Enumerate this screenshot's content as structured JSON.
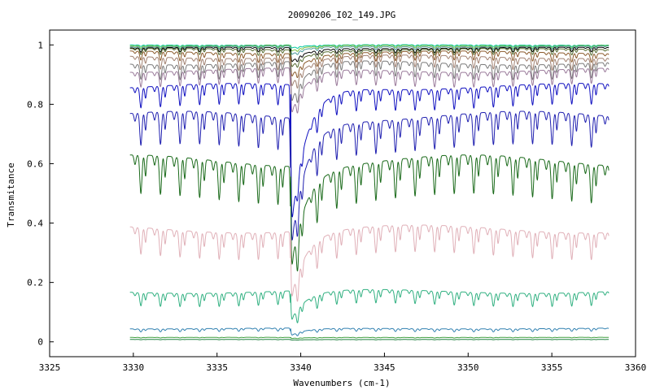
{
  "chart_data": {
    "type": "line",
    "title": "20090206_I02_149.JPG",
    "xlabel": "Wavenumbers (cm-1)",
    "ylabel": "Transmitance",
    "xlim": [
      3325,
      3360
    ],
    "ylim": [
      -0.05,
      1.05
    ],
    "xticks": [
      3325,
      3330,
      3335,
      3340,
      3345,
      3350,
      3355,
      3360
    ],
    "xtick_labels": [
      "3325",
      "3330",
      "3335",
      "3340",
      "3345",
      "3350",
      "3355",
      "3360"
    ],
    "yticks": [
      0,
      0.2,
      0.4,
      0.6,
      0.8,
      1
    ],
    "ytick_labels": [
      "0",
      "0.2",
      "0.4",
      "0.6",
      "0.8",
      "1"
    ],
    "x_range": [
      3329.8,
      3358.4
    ],
    "grid": false,
    "legend": "none",
    "absorption_line_spacing_cm1": 1.17,
    "strong_dip_at": 3339.4,
    "series": [
      {
        "color": "#00c8a0",
        "baseline": 1.0,
        "depth": 0.005,
        "strong": 0.01
      },
      {
        "color": "#7fbf3f",
        "baseline": 0.998,
        "depth": 0.008,
        "strong": 0.02
      },
      {
        "color": "#4a9a9a",
        "baseline": 0.995,
        "depth": 0.01,
        "strong": 0.03
      },
      {
        "color": "#000000",
        "baseline": 0.99,
        "depth": 0.015,
        "strong": 0.05
      },
      {
        "color": "#556b2f",
        "baseline": 0.985,
        "depth": 0.02,
        "strong": 0.06
      },
      {
        "color": "#8b5a2b",
        "baseline": 0.975,
        "depth": 0.03,
        "strong": 0.08
      },
      {
        "color": "#a08070",
        "baseline": 0.96,
        "depth": 0.04,
        "strong": 0.1
      },
      {
        "color": "#7a7a7a",
        "baseline": 0.94,
        "depth": 0.05,
        "strong": 0.14
      },
      {
        "color": "#9a7a9a",
        "baseline": 0.915,
        "depth": 0.05,
        "strong": 0.16
      },
      {
        "color": "#1010c0",
        "baseline": 0.86,
        "depth": 0.07,
        "strong": 0.5
      },
      {
        "color": "#2020b0",
        "baseline": 0.76,
        "depth": 0.11,
        "strong": 0.45
      },
      {
        "color": "#1a6a1a",
        "baseline": 0.61,
        "depth": 0.13,
        "strong": 0.35
      },
      {
        "color": "#e0b0b8",
        "baseline": 0.38,
        "depth": 0.09,
        "strong": 0.23
      },
      {
        "color": "#30b080",
        "baseline": 0.17,
        "depth": 0.045,
        "strong": 0.1
      },
      {
        "color": "#3080b0",
        "baseline": 0.045,
        "depth": 0.01,
        "strong": 0.025
      },
      {
        "color": "#40a040",
        "baseline": 0.015,
        "depth": 0.002,
        "strong": 0.004
      },
      {
        "color": "#208040",
        "baseline": 0.008,
        "depth": 0.001,
        "strong": 0.002
      }
    ]
  }
}
